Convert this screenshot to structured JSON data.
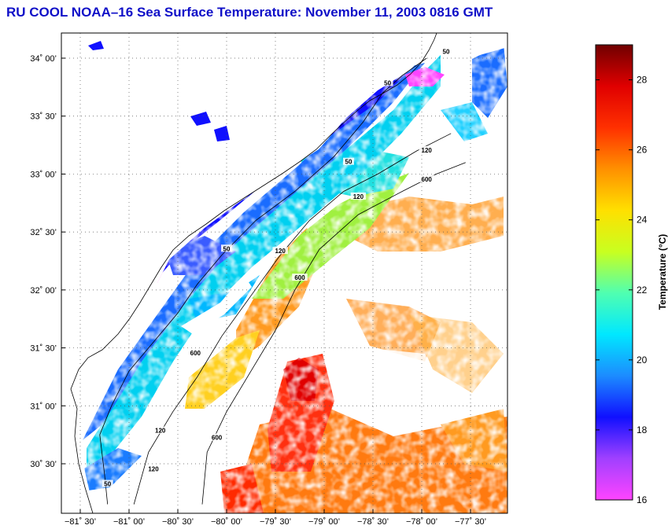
{
  "title": "RU COOL  NOAA–16  Sea Surface Temperature:  November 11, 2003 0816 GMT",
  "map": {
    "lat_ticks": [
      {
        "value": 34.0,
        "label": "34˚ 00’"
      },
      {
        "value": 33.5,
        "label": "33˚ 30’"
      },
      {
        "value": 33.0,
        "label": "33˚ 00’"
      },
      {
        "value": 32.5,
        "label": "32˚ 30’"
      },
      {
        "value": 32.0,
        "label": "32˚ 00’"
      },
      {
        "value": 31.5,
        "label": "31˚ 30’"
      },
      {
        "value": 31.0,
        "label": "31˚ 00’"
      },
      {
        "value": 30.5,
        "label": "30˚ 30’"
      }
    ],
    "lon_ticks": [
      {
        "value": -81.5,
        "label": "−81˚ 30’"
      },
      {
        "value": -81.0,
        "label": "−81˚ 00’"
      },
      {
        "value": -80.5,
        "label": "−80˚ 30’"
      },
      {
        "value": -80.0,
        "label": "−80˚ 00’"
      },
      {
        "value": -79.5,
        "label": "−79˚ 30’"
      },
      {
        "value": -79.0,
        "label": "−79˚ 00’"
      },
      {
        "value": -78.5,
        "label": "−78˚ 30’"
      },
      {
        "value": -78.0,
        "label": "−78˚ 00’"
      },
      {
        "value": -77.5,
        "label": "−77˚ 30’"
      }
    ],
    "contours": [
      {
        "depth": "50",
        "points": [
          [
            -81.22,
            30.15
          ],
          [
            -81.25,
            30.4
          ],
          [
            -81.3,
            30.75
          ],
          [
            -81.18,
            31.0
          ],
          [
            -81.0,
            31.3
          ],
          [
            -80.75,
            31.55
          ],
          [
            -80.5,
            31.8
          ],
          [
            -80.3,
            32.05
          ],
          [
            -80.05,
            32.3
          ],
          [
            -79.7,
            32.6
          ],
          [
            -79.3,
            32.85
          ],
          [
            -78.9,
            33.15
          ],
          [
            -78.6,
            33.45
          ],
          [
            -78.4,
            33.7
          ],
          [
            -78.2,
            33.85
          ],
          [
            -77.95,
            34.0
          ]
        ],
        "labels": [
          [
            -81.22,
            30.32
          ],
          [
            -80.0,
            32.35
          ],
          [
            -78.75,
            33.1
          ],
          [
            -78.35,
            33.78
          ],
          [
            -77.75,
            34.05
          ]
        ]
      },
      {
        "depth": "120",
        "points": [
          [
            -80.95,
            30.15
          ],
          [
            -80.8,
            30.6
          ],
          [
            -80.55,
            30.95
          ],
          [
            -80.3,
            31.25
          ],
          [
            -80.05,
            31.6
          ],
          [
            -79.75,
            31.95
          ],
          [
            -79.45,
            32.3
          ],
          [
            -79.15,
            32.6
          ],
          [
            -78.8,
            32.85
          ],
          [
            -78.45,
            33.0
          ],
          [
            -78.05,
            33.2
          ],
          [
            -77.7,
            33.35
          ]
        ],
        "labels": [
          [
            -80.75,
            30.45
          ],
          [
            -80.68,
            30.78
          ],
          [
            -79.45,
            32.33
          ],
          [
            -78.65,
            32.8
          ],
          [
            -77.95,
            33.2
          ]
        ]
      },
      {
        "depth": "600",
        "points": [
          [
            -80.25,
            30.15
          ],
          [
            -80.2,
            30.6
          ],
          [
            -80.0,
            30.95
          ],
          [
            -79.75,
            31.3
          ],
          [
            -79.5,
            31.65
          ],
          [
            -79.3,
            32.0
          ],
          [
            -79.05,
            32.35
          ],
          [
            -78.65,
            32.65
          ],
          [
            -78.2,
            32.85
          ],
          [
            -77.85,
            33.0
          ],
          [
            -77.55,
            33.1
          ]
        ],
        "labels": [
          [
            -80.1,
            30.72
          ],
          [
            -80.32,
            31.45
          ],
          [
            -79.25,
            32.1
          ],
          [
            -77.95,
            32.95
          ]
        ]
      }
    ],
    "coastline_color": "#000000",
    "grid_style": "dotted"
  },
  "colorbar": {
    "title": "Temperature (°C)",
    "min": 16,
    "max": 29,
    "ticks": [
      16,
      18,
      20,
      22,
      24,
      26,
      28
    ],
    "colors": [
      "#ff44ff",
      "#a040ff",
      "#1010ff",
      "#1c8cff",
      "#00e8ff",
      "#50ffb0",
      "#c8ff20",
      "#ffe000",
      "#ff9000",
      "#ff3000",
      "#e00000",
      "#700000"
    ]
  }
}
